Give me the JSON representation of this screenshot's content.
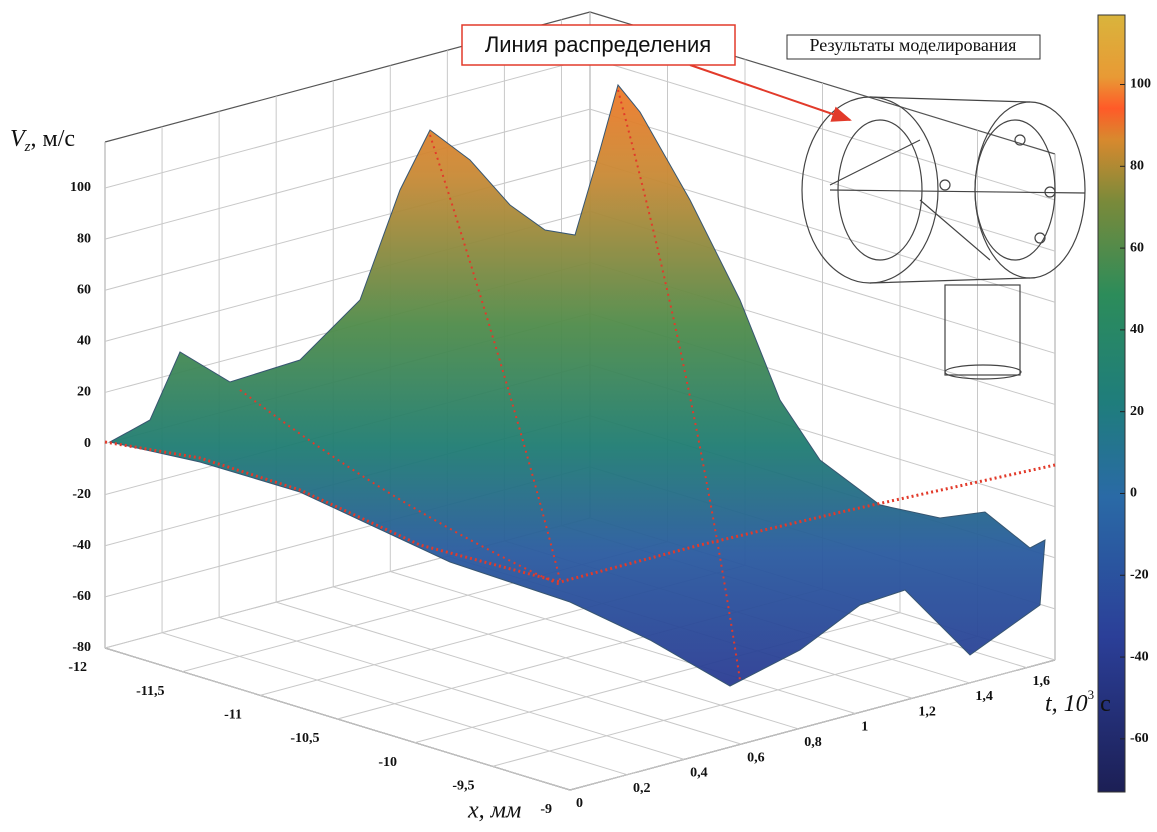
{
  "chart_data": {
    "type": "surface3d",
    "zlabel_symbol": "V",
    "zlabel_subscript": "z",
    "zlabel_unit": ", м/с",
    "xlabel": "x, мм",
    "tlabel_symbol": "t, 10",
    "tlabel_power": "3",
    "tlabel_unit": " с",
    "zlim": [
      -80,
      118
    ],
    "zticks": [
      -80,
      -60,
      -40,
      -20,
      0,
      20,
      40,
      60,
      80,
      100
    ],
    "xlim": [
      -12,
      -9
    ],
    "xticks": [
      -12,
      {
        "value": -11.5,
        "label": "-11,5"
      },
      -11,
      {
        "value": -10.5,
        "label": "-10,5"
      },
      -10,
      {
        "value": -9.5,
        "label": "-9,5"
      },
      -9
    ],
    "tlim": [
      0,
      1.7
    ],
    "tticks": [
      0,
      {
        "value": 0.2,
        "label": "0,2"
      },
      {
        "value": 0.4,
        "label": "0,4"
      },
      {
        "value": 0.6,
        "label": "0,6"
      },
      {
        "value": 0.8,
        "label": "0,8"
      },
      1,
      {
        "value": 1.2,
        "label": "1,2"
      },
      {
        "value": 1.4,
        "label": "1,4"
      },
      {
        "value": 1.6,
        "label": "1,6"
      }
    ],
    "clim": [
      -73,
      117
    ],
    "cticks": [
      -60,
      -40,
      -20,
      0,
      20,
      40,
      60,
      80,
      100
    ],
    "grid": true,
    "annotations": [
      "Линия распределения",
      "Результаты моделирования"
    ]
  }
}
